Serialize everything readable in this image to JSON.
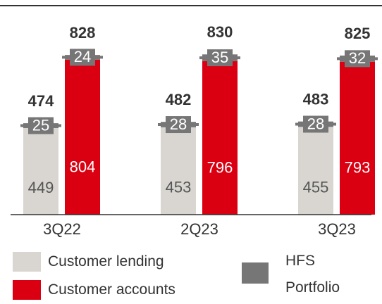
{
  "chart_data": {
    "type": "stacked-bar",
    "categories": [
      "3Q22",
      "2Q23",
      "3Q23"
    ],
    "ylim": [
      0,
      1000
    ],
    "stacks": [
      {
        "series": [
          {
            "name": "Customer lending",
            "color": "#d9d6d2",
            "values": [
              449,
              453,
              455
            ]
          },
          {
            "name": "HFS Portfolio",
            "color": "#767676",
            "values": [
              25,
              28,
              28
            ]
          }
        ],
        "totals": [
          474,
          482,
          483
        ]
      },
      {
        "series": [
          {
            "name": "Customer accounts",
            "color": "#db0011",
            "values": [
              804,
              796,
              793
            ]
          },
          {
            "color": "#767676",
            "values": [
              24,
              35,
              32
            ]
          }
        ],
        "totals": [
          828,
          830,
          825
        ]
      }
    ]
  }
}
